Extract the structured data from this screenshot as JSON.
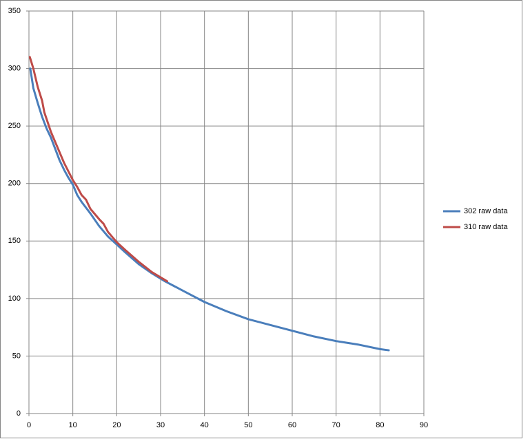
{
  "chart_data": {
    "type": "line",
    "series": [
      {
        "name": "302 raw data",
        "color": "#4a7ebb",
        "x": [
          0.3,
          1,
          2,
          3,
          4,
          5,
          6,
          7,
          8,
          9,
          10,
          11,
          12,
          14,
          16,
          18,
          20,
          22,
          25,
          28,
          31,
          35,
          40,
          45,
          50,
          55,
          60,
          65,
          70,
          75,
          80,
          82
        ],
        "values": [
          300,
          283,
          270,
          258,
          248,
          240,
          230,
          220,
          212,
          205,
          199,
          190,
          184,
          174,
          163,
          154,
          147,
          140,
          130,
          122,
          115,
          107,
          97,
          89,
          82,
          77,
          72,
          67,
          63,
          60,
          56,
          55
        ]
      },
      {
        "name": "310 raw data",
        "color": "#be4b48",
        "x": [
          0.2,
          1,
          2,
          3,
          3.5,
          5,
          6,
          7,
          8,
          10,
          11,
          12,
          13,
          14,
          16,
          17,
          18,
          20,
          22,
          25,
          28,
          31.5
        ],
        "values": [
          310,
          300,
          284,
          272,
          262,
          245,
          236,
          227,
          218,
          203,
          197,
          190,
          186,
          178,
          169,
          165,
          158,
          149,
          142,
          132,
          123,
          115
        ]
      }
    ],
    "xlim": [
      0,
      90
    ],
    "xticks": [
      0,
      10,
      20,
      30,
      40,
      50,
      60,
      70,
      80,
      90
    ],
    "ylim": [
      0,
      350
    ],
    "yticks": [
      0,
      50,
      100,
      150,
      200,
      250,
      300,
      350
    ],
    "grid": true,
    "legend": "right"
  }
}
